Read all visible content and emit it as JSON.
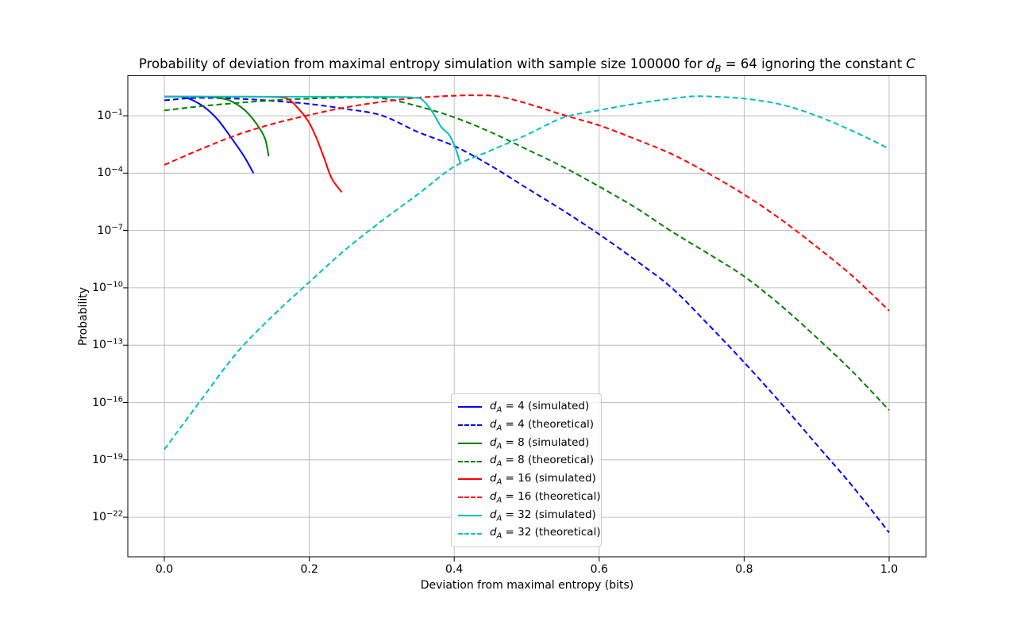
{
  "title": {
    "prefix": "Probability of deviation from maximal entropy simulation with sample size 100000 for ",
    "math1_var": "d",
    "math1_sub": "B",
    "middle": " = 64 ignoring the constant ",
    "math2_var": "C"
  },
  "axes": {
    "xlabel": "Deviation from maximal entropy (bits)",
    "ylabel": "Probability",
    "x_ticks": [
      {
        "value": 0.0,
        "label": "0.0"
      },
      {
        "value": 0.2,
        "label": "0.2"
      },
      {
        "value": 0.4,
        "label": "0.4"
      },
      {
        "value": 0.6,
        "label": "0.6"
      },
      {
        "value": 0.8,
        "label": "0.8"
      },
      {
        "value": 1.0,
        "label": "1.0"
      }
    ],
    "y_ticks": [
      {
        "log10": -1,
        "base": "10",
        "exp": "−1"
      },
      {
        "log10": -4,
        "base": "10",
        "exp": "−4"
      },
      {
        "log10": -7,
        "base": "10",
        "exp": "−7"
      },
      {
        "log10": -10,
        "base": "10",
        "exp": "−10"
      },
      {
        "log10": -13,
        "base": "10",
        "exp": "−13"
      },
      {
        "log10": -16,
        "base": "10",
        "exp": "−16"
      },
      {
        "log10": -19,
        "base": "10",
        "exp": "−19"
      },
      {
        "log10": -22,
        "base": "10",
        "exp": "−22"
      }
    ],
    "grid_color": "#b0b0b0",
    "spine_color": "#000000"
  },
  "legend": {
    "var": "d",
    "sub": "A",
    "entries": [
      {
        "rest": "= 4 (simulated)",
        "series": "dA4_simulated"
      },
      {
        "rest": "= 4 (theoretical)",
        "series": "dA4_theoretical"
      },
      {
        "rest": "= 8 (simulated)",
        "series": "dA8_simulated"
      },
      {
        "rest": "= 8 (theoretical)",
        "series": "dA8_theoretical"
      },
      {
        "rest": "= 16 (simulated)",
        "series": "dA16_simulated"
      },
      {
        "rest": "= 16 (theoretical)",
        "series": "dA16_theoretical"
      },
      {
        "rest": "= 32 (simulated)",
        "series": "dA32_simulated"
      },
      {
        "rest": "= 32 (theoretical)",
        "series": "dA32_theoretical"
      }
    ]
  },
  "chart_data": {
    "type": "line",
    "title": "Probability of deviation from maximal entropy simulation with sample size 100000 for d_B = 64 ignoring the constant C",
    "xlabel": "Deviation from maximal entropy (bits)",
    "ylabel": "Probability",
    "sample_size": 100000,
    "d_B": 64,
    "x_range": [
      0,
      1
    ],
    "y_scale": "log",
    "y_tick_exponents": [
      -1,
      -4,
      -7,
      -10,
      -13,
      -16,
      -19,
      -22
    ],
    "grid": true,
    "legend_position": "lower center",
    "note": "points are [x_bits, log10_probability]",
    "series": [
      {
        "id": "dA4_simulated",
        "name": "d_A = 4 (simulated)",
        "color": "#0000ff",
        "linestyle": "solid",
        "points": [
          [
            0,
            0
          ],
          [
            0.015,
            0
          ],
          [
            0.025,
            -0.02
          ],
          [
            0.036,
            -0.13
          ],
          [
            0.055,
            -0.54
          ],
          [
            0.073,
            -1.17
          ],
          [
            0.091,
            -2.08
          ],
          [
            0.11,
            -3.12
          ],
          [
            0.123,
            -4.0
          ]
        ]
      },
      {
        "id": "dA4_theoretical",
        "name": "d_A = 4 (theoretical)",
        "color": "#0000ff",
        "linestyle": "dashed",
        "points": [
          [
            0,
            -0.19
          ],
          [
            0.04,
            -0.07
          ],
          [
            0.08,
            -0.08
          ],
          [
            0.12,
            -0.14
          ],
          [
            0.16,
            -0.25
          ],
          [
            0.2,
            -0.38
          ],
          [
            0.25,
            -0.64
          ],
          [
            0.3,
            -0.98
          ],
          [
            0.35,
            -1.85
          ],
          [
            0.4,
            -2.58
          ],
          [
            0.45,
            -3.6
          ],
          [
            0.5,
            -4.78
          ],
          [
            0.55,
            -5.95
          ],
          [
            0.6,
            -7.2
          ],
          [
            0.65,
            -8.55
          ],
          [
            0.7,
            -10.0
          ],
          [
            0.75,
            -11.9
          ],
          [
            0.8,
            -13.9
          ],
          [
            0.85,
            -16.0
          ],
          [
            0.9,
            -18.2
          ],
          [
            0.95,
            -20.4
          ],
          [
            1,
            -22.8
          ]
        ]
      },
      {
        "id": "dA8_simulated",
        "name": "d_A = 8 (simulated)",
        "color": "#008000",
        "linestyle": "solid",
        "points": [
          [
            0,
            0
          ],
          [
            0.05,
            0
          ],
          [
            0.068,
            -0.02
          ],
          [
            0.08,
            -0.1
          ],
          [
            0.091,
            -0.21
          ],
          [
            0.11,
            -0.67
          ],
          [
            0.128,
            -1.46
          ],
          [
            0.139,
            -2.2
          ],
          [
            0.144,
            -3.12
          ]
        ]
      },
      {
        "id": "dA8_theoretical",
        "name": "d_A = 8 (theoretical)",
        "color": "#008000",
        "linestyle": "dashed",
        "points": [
          [
            0,
            -0.72
          ],
          [
            0.05,
            -0.5
          ],
          [
            0.1,
            -0.33
          ],
          [
            0.15,
            -0.19
          ],
          [
            0.2,
            -0.1
          ],
          [
            0.25,
            -0.05
          ],
          [
            0.3,
            -0.08
          ],
          [
            0.35,
            -0.5
          ],
          [
            0.4,
            -1.08
          ],
          [
            0.45,
            -1.85
          ],
          [
            0.5,
            -2.75
          ],
          [
            0.55,
            -3.67
          ],
          [
            0.6,
            -4.7
          ],
          [
            0.65,
            -5.8
          ],
          [
            0.7,
            -7.05
          ],
          [
            0.75,
            -8.2
          ],
          [
            0.8,
            -9.4
          ],
          [
            0.85,
            -10.9
          ],
          [
            0.9,
            -12.6
          ],
          [
            0.95,
            -14.4
          ],
          [
            1,
            -16.4
          ]
        ]
      },
      {
        "id": "dA16_simulated",
        "name": "d_A = 16 (simulated)",
        "color": "#ff0000",
        "linestyle": "solid",
        "points": [
          [
            0,
            0
          ],
          [
            0.1,
            0
          ],
          [
            0.155,
            -0.02
          ],
          [
            0.171,
            -0.13
          ],
          [
            0.183,
            -0.54
          ],
          [
            0.198,
            -1.25
          ],
          [
            0.209,
            -2.08
          ],
          [
            0.22,
            -3.16
          ],
          [
            0.231,
            -4.28
          ],
          [
            0.245,
            -5.0
          ]
        ]
      },
      {
        "id": "dA16_theoretical",
        "name": "d_A = 16 (theoretical)",
        "color": "#ff0000",
        "linestyle": "dashed",
        "points": [
          [
            0,
            -3.57
          ],
          [
            0.05,
            -2.75
          ],
          [
            0.1,
            -2.0
          ],
          [
            0.15,
            -1.42
          ],
          [
            0.2,
            -0.96
          ],
          [
            0.25,
            -0.56
          ],
          [
            0.3,
            -0.27
          ],
          [
            0.35,
            -0.05
          ],
          [
            0.4,
            0.05
          ],
          [
            0.43,
            0.07
          ],
          [
            0.46,
            0.02
          ],
          [
            0.5,
            -0.35
          ],
          [
            0.55,
            -0.95
          ],
          [
            0.6,
            -1.5
          ],
          [
            0.65,
            -2.22
          ],
          [
            0.7,
            -3.0
          ],
          [
            0.75,
            -4.0
          ],
          [
            0.8,
            -5.12
          ],
          [
            0.85,
            -6.4
          ],
          [
            0.9,
            -7.85
          ],
          [
            0.95,
            -9.4
          ],
          [
            1,
            -11.2
          ]
        ]
      },
      {
        "id": "dA32_simulated",
        "name": "d_A = 32 (simulated)",
        "color": "#00bfbf",
        "linestyle": "solid",
        "points": [
          [
            0,
            0
          ],
          [
            0.15,
            0
          ],
          [
            0.25,
            0
          ],
          [
            0.33,
            -0.02
          ],
          [
            0.345,
            -0.06
          ],
          [
            0.355,
            -0.13
          ],
          [
            0.369,
            -0.75
          ],
          [
            0.382,
            -1.58
          ],
          [
            0.393,
            -2.0
          ],
          [
            0.401,
            -2.62
          ],
          [
            0.408,
            -3.43
          ]
        ]
      },
      {
        "id": "dA32_theoretical",
        "name": "d_A = 32 (theoretical)",
        "color": "#00bfbf",
        "linestyle": "dashed",
        "points": [
          [
            0,
            -18.45
          ],
          [
            0.05,
            -15.9
          ],
          [
            0.1,
            -13.4
          ],
          [
            0.15,
            -11.45
          ],
          [
            0.2,
            -9.7
          ],
          [
            0.25,
            -8.0
          ],
          [
            0.3,
            -6.5
          ],
          [
            0.35,
            -5.1
          ],
          [
            0.4,
            -3.66
          ],
          [
            0.45,
            -2.82
          ],
          [
            0.5,
            -2.0
          ],
          [
            0.55,
            -1.1
          ],
          [
            0.6,
            -0.71
          ],
          [
            0.65,
            -0.37
          ],
          [
            0.7,
            -0.1
          ],
          [
            0.73,
            0.02
          ],
          [
            0.76,
            0.0
          ],
          [
            0.8,
            -0.1
          ],
          [
            0.85,
            -0.4
          ],
          [
            0.9,
            -1.0
          ],
          [
            0.95,
            -1.8
          ],
          [
            1,
            -2.72
          ]
        ]
      }
    ]
  }
}
